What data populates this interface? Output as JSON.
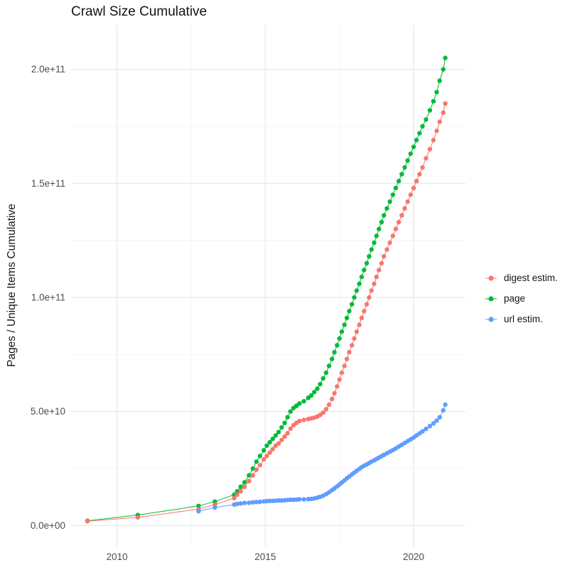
{
  "chart_data": {
    "type": "scatter",
    "title": "Crawl Size Cumulative",
    "xlabel": "",
    "ylabel": "Pages / Unique Items Cumulative",
    "grid": true,
    "legend_position": "right",
    "x_range": [
      2008.45,
      2021.75
    ],
    "y_range": [
      -9200000000.0,
      219500000000.0
    ],
    "x_ticks": [
      {
        "value": 2010,
        "label": "2010"
      },
      {
        "value": 2015,
        "label": "2015"
      },
      {
        "value": 2020,
        "label": "2020"
      }
    ],
    "y_ticks": [
      {
        "value": 0.0,
        "label": "0.0e+00"
      },
      {
        "value": 50000000000.0,
        "label": "5.0e+10"
      },
      {
        "value": 100000000000.0,
        "label": "1.0e+11"
      },
      {
        "value": 150000000000.0,
        "label": "1.5e+11"
      },
      {
        "value": 200000000000.0,
        "label": "2.0e+11"
      }
    ],
    "colors": {
      "grid_major": "#E8E8E8",
      "grid_minor": "#F4F4F4",
      "tick_text": "#4D4D4D"
    },
    "series": [
      {
        "name": "digest estim.",
        "color": "#F8766D",
        "points": [
          [
            2009.0,
            1900000000.0
          ],
          [
            2010.7,
            3600000000.0
          ],
          [
            2012.75,
            7200000000.0
          ],
          [
            2013.3,
            9200000000.0
          ],
          [
            2013.95,
            12000000000.0
          ],
          [
            2014.05,
            13500000000.0
          ],
          [
            2014.17,
            15000000000.0
          ],
          [
            2014.3,
            17000000000.0
          ],
          [
            2014.45,
            19500000000.0
          ],
          [
            2014.58,
            22000000000.0
          ],
          [
            2014.7,
            24500000000.0
          ],
          [
            2014.82,
            26500000000.0
          ],
          [
            2014.95,
            29000000000.0
          ],
          [
            2015.05,
            30500000000.0
          ],
          [
            2015.15,
            32000000000.0
          ],
          [
            2015.25,
            33500000000.0
          ],
          [
            2015.35,
            35000000000.0
          ],
          [
            2015.45,
            36000000000.0
          ],
          [
            2015.55,
            37500000000.0
          ],
          [
            2015.65,
            39000000000.0
          ],
          [
            2015.75,
            40500000000.0
          ],
          [
            2015.85,
            42500000000.0
          ],
          [
            2015.95,
            44000000000.0
          ],
          [
            2016.05,
            45000000000.0
          ],
          [
            2016.15,
            45800000000.0
          ],
          [
            2016.3,
            46300000000.0
          ],
          [
            2016.45,
            46700000000.0
          ],
          [
            2016.55,
            47000000000.0
          ],
          [
            2016.65,
            47300000000.0
          ],
          [
            2016.75,
            47800000000.0
          ],
          [
            2016.85,
            48500000000.0
          ],
          [
            2016.95,
            49500000000.0
          ],
          [
            2017.05,
            51000000000.0
          ],
          [
            2017.15,
            53000000000.0
          ],
          [
            2017.25,
            55500000000.0
          ],
          [
            2017.33,
            58000000000.0
          ],
          [
            2017.42,
            61000000000.0
          ],
          [
            2017.5,
            64000000000.0
          ],
          [
            2017.58,
            67000000000.0
          ],
          [
            2017.67,
            70000000000.0
          ],
          [
            2017.75,
            73000000000.0
          ],
          [
            2017.83,
            76000000000.0
          ],
          [
            2017.92,
            79000000000.0
          ],
          [
            2018.0,
            82000000000.0
          ],
          [
            2018.08,
            85000000000.0
          ],
          [
            2018.17,
            88000000000.0
          ],
          [
            2018.25,
            91000000000.0
          ],
          [
            2018.33,
            94000000000.0
          ],
          [
            2018.42,
            97000000000.0
          ],
          [
            2018.5,
            100000000000.0
          ],
          [
            2018.58,
            103000000000.0
          ],
          [
            2018.67,
            106000000000.0
          ],
          [
            2018.75,
            109000000000.0
          ],
          [
            2018.83,
            112000000000.0
          ],
          [
            2018.92,
            115000000000.0
          ],
          [
            2019.0,
            118000000000.0
          ],
          [
            2019.1,
            121000000000.0
          ],
          [
            2019.2,
            124000000000.0
          ],
          [
            2019.3,
            127000000000.0
          ],
          [
            2019.4,
            130000000000.0
          ],
          [
            2019.5,
            133000000000.0
          ],
          [
            2019.6,
            136000000000.0
          ],
          [
            2019.7,
            139000000000.0
          ],
          [
            2019.8,
            142000000000.0
          ],
          [
            2019.9,
            145000000000.0
          ],
          [
            2020.0,
            148000000000.0
          ],
          [
            2020.1,
            151000000000.0
          ],
          [
            2020.2,
            154000000000.0
          ],
          [
            2020.3,
            157000000000.0
          ],
          [
            2020.42,
            161000000000.0
          ],
          [
            2020.55,
            165000000000.0
          ],
          [
            2020.67,
            169000000000.0
          ],
          [
            2020.78,
            173000000000.0
          ],
          [
            2020.88,
            177000000000.0
          ],
          [
            2021.0,
            181000000000.0
          ],
          [
            2021.07,
            185000000000.0
          ]
        ]
      },
      {
        "name": "page",
        "color": "#00BA38",
        "points": [
          [
            2009.0,
            2100000000.0
          ],
          [
            2010.7,
            4600000000.0
          ],
          [
            2012.75,
            8600000000.0
          ],
          [
            2013.3,
            10500000000.0
          ],
          [
            2013.95,
            13500000000.0
          ],
          [
            2014.05,
            15000000000.0
          ],
          [
            2014.17,
            17000000000.0
          ],
          [
            2014.3,
            19000000000.0
          ],
          [
            2014.45,
            22000000000.0
          ],
          [
            2014.58,
            25000000000.0
          ],
          [
            2014.7,
            28000000000.0
          ],
          [
            2014.82,
            30500000000.0
          ],
          [
            2014.95,
            33000000000.0
          ],
          [
            2015.05,
            35000000000.0
          ],
          [
            2015.15,
            36500000000.0
          ],
          [
            2015.25,
            38000000000.0
          ],
          [
            2015.35,
            39500000000.0
          ],
          [
            2015.45,
            41000000000.0
          ],
          [
            2015.55,
            43000000000.0
          ],
          [
            2015.65,
            45000000000.0
          ],
          [
            2015.75,
            47500000000.0
          ],
          [
            2015.85,
            50000000000.0
          ],
          [
            2015.95,
            51500000000.0
          ],
          [
            2016.05,
            52500000000.0
          ],
          [
            2016.15,
            53500000000.0
          ],
          [
            2016.3,
            54500000000.0
          ],
          [
            2016.45,
            56000000000.0
          ],
          [
            2016.55,
            57000000000.0
          ],
          [
            2016.65,
            58500000000.0
          ],
          [
            2016.75,
            60000000000.0
          ],
          [
            2016.85,
            62000000000.0
          ],
          [
            2016.95,
            64500000000.0
          ],
          [
            2017.05,
            67000000000.0
          ],
          [
            2017.15,
            70000000000.0
          ],
          [
            2017.25,
            73000000000.0
          ],
          [
            2017.33,
            76000000000.0
          ],
          [
            2017.42,
            79000000000.0
          ],
          [
            2017.5,
            82000000000.0
          ],
          [
            2017.58,
            85000000000.0
          ],
          [
            2017.67,
            88000000000.0
          ],
          [
            2017.75,
            91000000000.0
          ],
          [
            2017.83,
            94000000000.0
          ],
          [
            2017.92,
            97000000000.0
          ],
          [
            2018.0,
            100000000000.0
          ],
          [
            2018.08,
            103000000000.0
          ],
          [
            2018.17,
            106000000000.0
          ],
          [
            2018.25,
            109000000000.0
          ],
          [
            2018.33,
            112000000000.0
          ],
          [
            2018.42,
            115000000000.0
          ],
          [
            2018.5,
            118000000000.0
          ],
          [
            2018.58,
            121000000000.0
          ],
          [
            2018.67,
            124000000000.0
          ],
          [
            2018.75,
            127000000000.0
          ],
          [
            2018.83,
            130000000000.0
          ],
          [
            2018.92,
            133000000000.0
          ],
          [
            2019.0,
            136000000000.0
          ],
          [
            2019.1,
            139000000000.0
          ],
          [
            2019.2,
            142000000000.0
          ],
          [
            2019.3,
            145000000000.0
          ],
          [
            2019.4,
            148000000000.0
          ],
          [
            2019.5,
            151000000000.0
          ],
          [
            2019.6,
            154000000000.0
          ],
          [
            2019.7,
            157000000000.0
          ],
          [
            2019.8,
            160000000000.0
          ],
          [
            2019.9,
            163000000000.0
          ],
          [
            2020.0,
            166000000000.0
          ],
          [
            2020.1,
            169000000000.0
          ],
          [
            2020.2,
            172000000000.0
          ],
          [
            2020.3,
            175000000000.0
          ],
          [
            2020.42,
            178000000000.0
          ],
          [
            2020.55,
            182000000000.0
          ],
          [
            2020.67,
            186000000000.0
          ],
          [
            2020.78,
            190000000000.0
          ],
          [
            2020.88,
            195000000000.0
          ],
          [
            2021.0,
            200000000000.0
          ],
          [
            2021.07,
            205000000000.0
          ]
        ]
      },
      {
        "name": "url estim.",
        "color": "#619CFF",
        "points": [
          [
            2012.75,
            6300000000.0
          ],
          [
            2013.3,
            7900000000.0
          ],
          [
            2013.95,
            9200000000.0
          ],
          [
            2014.05,
            9500000000.0
          ],
          [
            2014.17,
            9700000000.0
          ],
          [
            2014.3,
            9900000000.0
          ],
          [
            2014.45,
            10000000000.0
          ],
          [
            2014.58,
            10200000000.0
          ],
          [
            2014.7,
            10300000000.0
          ],
          [
            2014.82,
            10400000000.0
          ],
          [
            2014.95,
            10600000000.0
          ],
          [
            2015.05,
            10700000000.0
          ],
          [
            2015.15,
            10800000000.0
          ],
          [
            2015.25,
            10800000000.0
          ],
          [
            2015.35,
            10900000000.0
          ],
          [
            2015.45,
            11000000000.0
          ],
          [
            2015.55,
            11000000000.0
          ],
          [
            2015.65,
            11100000000.0
          ],
          [
            2015.75,
            11200000000.0
          ],
          [
            2015.85,
            11300000000.0
          ],
          [
            2015.95,
            11300000000.0
          ],
          [
            2016.05,
            11400000000.0
          ],
          [
            2016.15,
            11500000000.0
          ],
          [
            2016.3,
            11500000000.0
          ],
          [
            2016.45,
            11600000000.0
          ],
          [
            2016.55,
            11700000000.0
          ],
          [
            2016.65,
            11900000000.0
          ],
          [
            2016.75,
            12200000000.0
          ],
          [
            2016.85,
            12600000000.0
          ],
          [
            2016.95,
            13100000000.0
          ],
          [
            2017.05,
            13800000000.0
          ],
          [
            2017.15,
            14600000000.0
          ],
          [
            2017.25,
            15500000000.0
          ],
          [
            2017.33,
            16300000000.0
          ],
          [
            2017.42,
            17200000000.0
          ],
          [
            2017.5,
            18000000000.0
          ],
          [
            2017.58,
            18900000000.0
          ],
          [
            2017.67,
            19800000000.0
          ],
          [
            2017.75,
            20700000000.0
          ],
          [
            2017.83,
            21500000000.0
          ],
          [
            2017.92,
            22400000000.0
          ],
          [
            2018.0,
            23200000000.0
          ],
          [
            2018.08,
            24000000000.0
          ],
          [
            2018.17,
            24800000000.0
          ],
          [
            2018.25,
            25600000000.0
          ],
          [
            2018.33,
            26200000000.0
          ],
          [
            2018.42,
            26800000000.0
          ],
          [
            2018.5,
            27400000000.0
          ],
          [
            2018.58,
            28000000000.0
          ],
          [
            2018.67,
            28600000000.0
          ],
          [
            2018.75,
            29200000000.0
          ],
          [
            2018.83,
            29800000000.0
          ],
          [
            2018.92,
            30400000000.0
          ],
          [
            2019.0,
            31000000000.0
          ],
          [
            2019.1,
            31700000000.0
          ],
          [
            2019.2,
            32400000000.0
          ],
          [
            2019.3,
            33100000000.0
          ],
          [
            2019.4,
            33800000000.0
          ],
          [
            2019.5,
            34600000000.0
          ],
          [
            2019.6,
            35400000000.0
          ],
          [
            2019.7,
            36200000000.0
          ],
          [
            2019.8,
            37000000000.0
          ],
          [
            2019.9,
            37800000000.0
          ],
          [
            2020.0,
            38600000000.0
          ],
          [
            2020.1,
            39500000000.0
          ],
          [
            2020.2,
            40400000000.0
          ],
          [
            2020.3,
            41300000000.0
          ],
          [
            2020.42,
            42400000000.0
          ],
          [
            2020.55,
            43600000000.0
          ],
          [
            2020.67,
            44800000000.0
          ],
          [
            2020.78,
            46000000000.0
          ],
          [
            2020.88,
            47500000000.0
          ],
          [
            2021.0,
            50500000000.0
          ],
          [
            2021.07,
            53000000000.0
          ]
        ]
      }
    ]
  }
}
